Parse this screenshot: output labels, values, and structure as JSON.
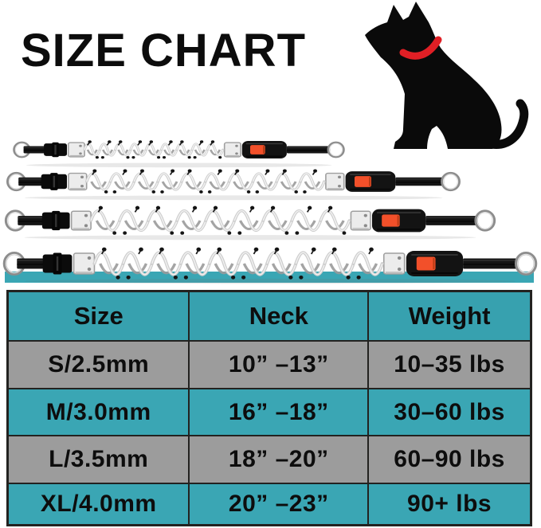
{
  "title": "SIZE CHART",
  "icons": {
    "dog": "sitting-dog-silhouette-with-red-collar"
  },
  "collars": [
    {
      "id": "s",
      "label": "S"
    },
    {
      "id": "m",
      "label": "M"
    },
    {
      "id": "l",
      "label": "L"
    },
    {
      "id": "xl",
      "label": "XL"
    }
  ],
  "chart_data": {
    "type": "table",
    "title": "SIZE CHART",
    "columns": [
      "Size",
      "Neck",
      "Weight"
    ],
    "rows": [
      [
        "S/2.5mm",
        "10” –13”",
        "10–35 lbs"
      ],
      [
        "M/3.0mm",
        "16” –18”",
        "30–60 lbs"
      ],
      [
        "L/3.5mm",
        "18” –20”",
        "60–90 lbs"
      ],
      [
        "XL/4.0mm",
        "20” –23”",
        "90+ lbs"
      ]
    ]
  },
  "colors": {
    "header_bg": "#37a1af",
    "row_teal": "#3aa6b4",
    "row_gray": "#9c9c9c",
    "border": "#232220",
    "text": "#0d0d0d",
    "dog_collar_red": "#e01f25",
    "buckle_button_orange": "#f2502a",
    "strap_black": "#141414",
    "chain_silver": "#cfcfcf"
  }
}
